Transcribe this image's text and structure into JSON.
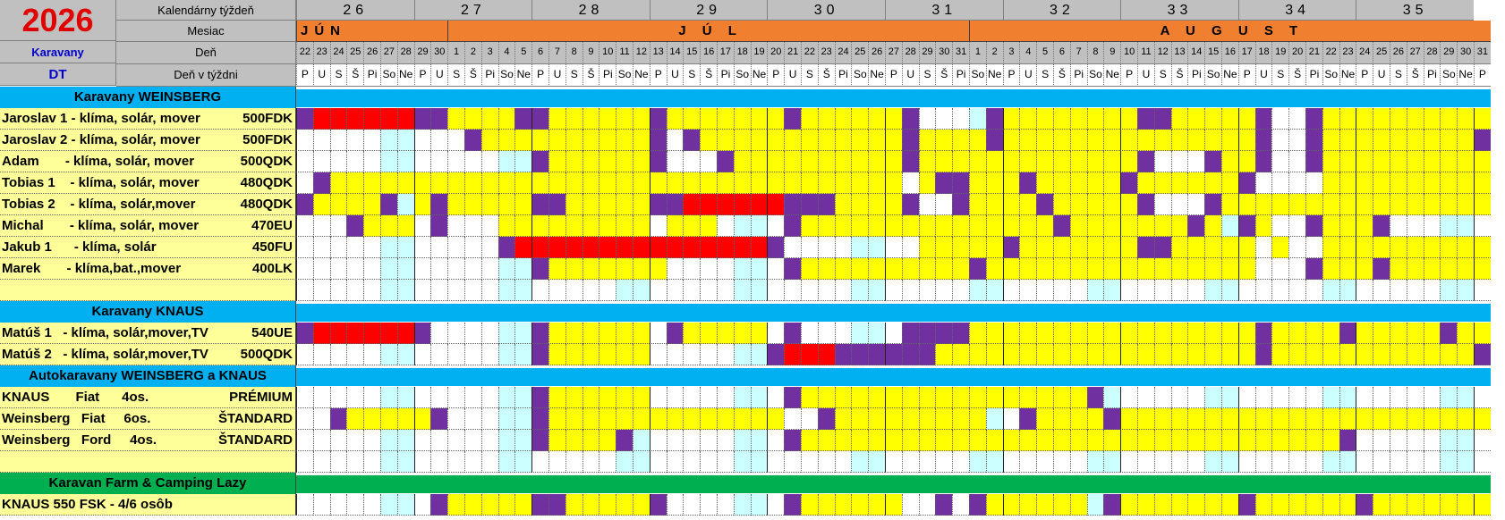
{
  "year": "2026",
  "left_header": {
    "caravan_label": "Karavany",
    "dt_label": "DT"
  },
  "header_labels": {
    "week": "Kalendárny týždeň",
    "month": "Mesiac",
    "day": "Deň",
    "weekday": "Deň v týždni"
  },
  "weeks": [
    "26",
    "27",
    "28",
    "29",
    "30",
    "31",
    "32",
    "33",
    "34",
    "35"
  ],
  "months": [
    "JÚN",
    "J Ú L",
    "A U G U S T"
  ],
  "days": [
    "22",
    "23",
    "24",
    "25",
    "26",
    "27",
    "28",
    "29",
    "30",
    "1",
    "2",
    "3",
    "4",
    "5",
    "6",
    "7",
    "8",
    "9",
    "10",
    "11",
    "12",
    "13",
    "14",
    "15",
    "16",
    "17",
    "18",
    "19",
    "20",
    "21",
    "22",
    "23",
    "24",
    "25",
    "26",
    "27",
    "28",
    "29",
    "30",
    "31",
    "1",
    "2",
    "3",
    "4",
    "5",
    "6",
    "7",
    "8",
    "9",
    "10",
    "11",
    "12",
    "13",
    "14",
    "15",
    "16",
    "17",
    "18",
    "19",
    "20",
    "21",
    "22",
    "23",
    "24",
    "25",
    "26",
    "27",
    "28",
    "29",
    "30",
    "31"
  ],
  "weekdays": [
    "P",
    "U",
    "S",
    "Š",
    "Pi",
    "So",
    "Ne"
  ],
  "sections": [
    {
      "title": "Karavany  WEINSBERG",
      "color": "#00b0f0"
    },
    {
      "title": "Karavany  KNAUS",
      "color": "#00b0f0"
    },
    {
      "title": "Autokaravany  WEINSBERG a KNAUS",
      "color": "#00b0f0"
    },
    {
      "title": "Karavan Farm & Camping  Lazy",
      "color": "#00b050"
    }
  ],
  "rows": [
    {
      "name": "Jaroslav 1 - klíma, solár, mover",
      "code": "500FDK"
    },
    {
      "name": "Jaroslav 2 - klíma, solár, mover",
      "code": "500FDK"
    },
    {
      "name": "Adam       - klíma, solár, mover",
      "code": "500QDK"
    },
    {
      "name": "Tobias 1    - klíma, solár, mover",
      "code": "480QDK"
    },
    {
      "name": "Tobias 2    - klíma, solár,mover",
      "code": "480QDK"
    },
    {
      "name": "Michal       - klíma, solár, mover",
      "code": "470EU"
    },
    {
      "name": "Jakub 1      - klíma, solár",
      "code": "450FU"
    },
    {
      "name": "Marek       - klíma,bat.,mover",
      "code": "400LK"
    },
    {
      "name": "Matúš 1   - klíma, solár,mover,TV",
      "code": "540UE"
    },
    {
      "name": "Matúš 2   - klíma, solár,mover,TV",
      "code": "500QDK"
    },
    {
      "name": "KNAUS       Fiat      4os.",
      "code": "PRÉMIUM"
    },
    {
      "name": "Weinsberg   Fiat     6os.",
      "code": "ŠTANDARD"
    },
    {
      "name": "Weinsberg   Ford     4os.",
      "code": "ŠTANDARD"
    },
    {
      "name": "KNAUS 550 FSK - 4/6 osôb",
      "code": ""
    }
  ],
  "colors": {
    "free": "#ffff00",
    "reserved": "#7030a0",
    "occupied": "#ff0000",
    "weekend": "#ccffff",
    "empty": "#ffffff"
  }
}
